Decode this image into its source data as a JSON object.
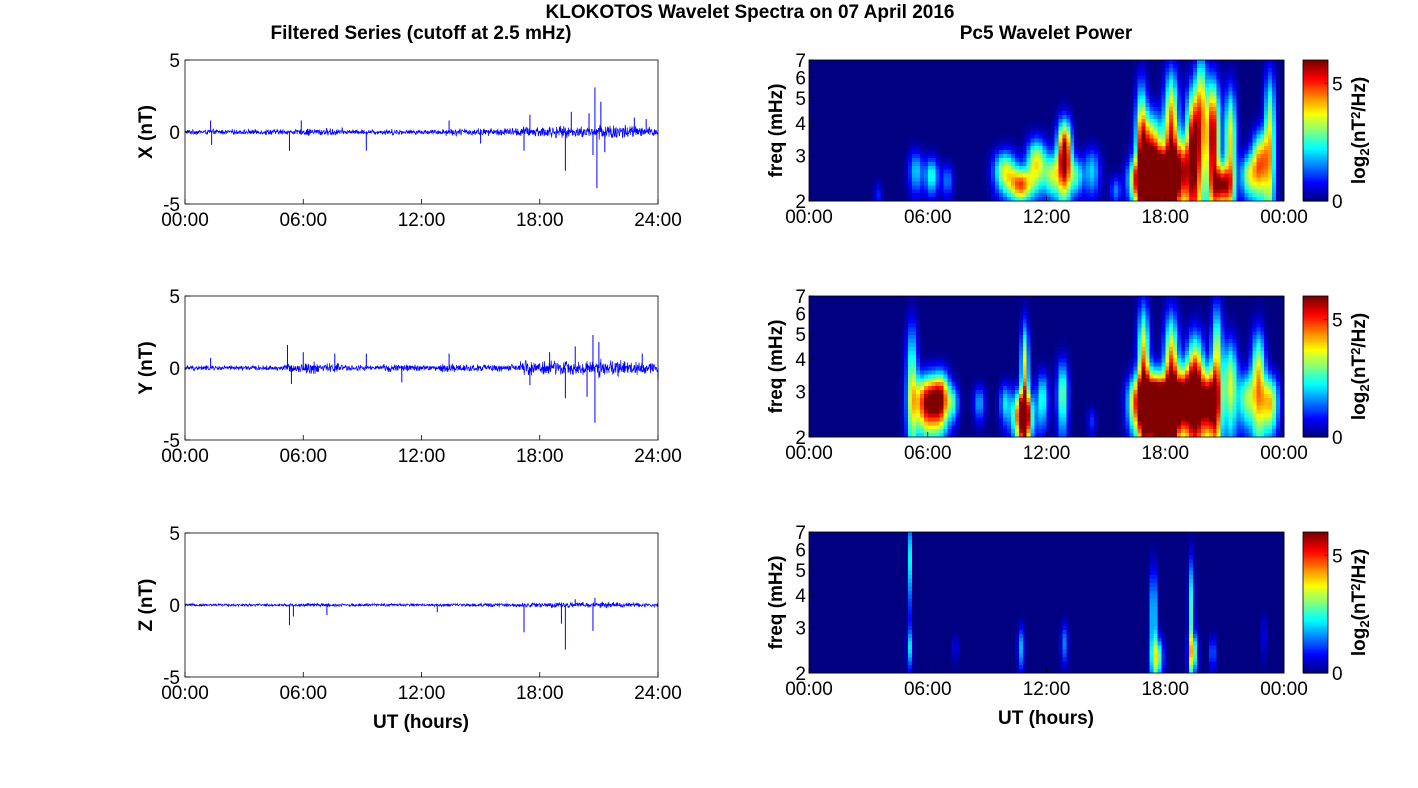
{
  "figure": {
    "title": "KLOKOTOS Wavelet Spectra on 07 April 2016",
    "left_title": "Filtered Series (cutoff at 2.5 mHz)",
    "right_title": "Pc5 Wavelet Power",
    "left_xlabel": "UT (hours)",
    "right_xlabel": "UT (hours)",
    "left_xticks": [
      "00:00",
      "06:00",
      "12:00",
      "18:00",
      "24:00"
    ],
    "right_xticks": [
      "00:00",
      "06:00",
      "12:00",
      "18:00",
      "00:00"
    ]
  },
  "chart_data": [
    {
      "type": "line",
      "ylabel": "X (nT)",
      "ylim": [
        -5,
        5
      ],
      "xlim": [
        "00:00",
        "24:00"
      ],
      "yticks": [
        "5",
        "0",
        "-5"
      ],
      "line_color": "#0000ff",
      "series": [
        {
          "baseline_amplitude_nT": [
            0.2,
            0.2,
            0.2,
            0.2,
            0.25,
            0.2,
            0.3,
            0.3,
            0.2,
            0.2,
            0.25,
            0.2,
            0.2,
            0.3,
            0.3,
            0.3,
            0.35,
            0.45,
            0.5,
            0.45,
            0.45,
            0.7,
            0.6,
            0.4
          ],
          "spikes": [
            [
              1.3,
              0.8
            ],
            [
              1.35,
              -0.9
            ],
            [
              5.3,
              -1.3
            ],
            [
              5.9,
              0.8
            ],
            [
              9.2,
              -1.3
            ],
            [
              13.4,
              0.8
            ],
            [
              15.0,
              -0.8
            ],
            [
              17.2,
              -1.3
            ],
            [
              17.5,
              1.2
            ],
            [
              19.3,
              -2.7
            ],
            [
              19.6,
              1.4
            ],
            [
              20.5,
              1.3
            ],
            [
              20.7,
              -1.6
            ],
            [
              20.8,
              3.1
            ],
            [
              20.9,
              -3.9
            ],
            [
              21.1,
              2.1
            ],
            [
              21.3,
              -1.4
            ],
            [
              22.8,
              1.0
            ],
            [
              23.4,
              0.9
            ]
          ]
        }
      ]
    },
    {
      "type": "line",
      "ylabel": "Y (nT)",
      "ylim": [
        -5,
        5
      ],
      "xlim": [
        "00:00",
        "24:00"
      ],
      "yticks": [
        "5",
        "0",
        "-5"
      ],
      "line_color": "#0000ff",
      "series": [
        {
          "baseline_amplitude_nT": [
            0.2,
            0.2,
            0.2,
            0.2,
            0.2,
            0.35,
            0.5,
            0.4,
            0.25,
            0.2,
            0.3,
            0.3,
            0.25,
            0.35,
            0.3,
            0.3,
            0.3,
            0.6,
            0.65,
            0.55,
            0.6,
            0.8,
            0.6,
            0.5
          ],
          "spikes": [
            [
              1.3,
              0.7
            ],
            [
              5.2,
              1.6
            ],
            [
              5.4,
              -1.1
            ],
            [
              6.0,
              1.1
            ],
            [
              7.6,
              1.0
            ],
            [
              9.2,
              1.0
            ],
            [
              11.0,
              -1.0
            ],
            [
              13.4,
              1.0
            ],
            [
              17.5,
              -1.2
            ],
            [
              18.5,
              1.1
            ],
            [
              19.3,
              -2.1
            ],
            [
              19.8,
              1.5
            ],
            [
              20.4,
              -2.0
            ],
            [
              20.7,
              2.3
            ],
            [
              20.8,
              -3.8
            ],
            [
              21.0,
              1.8
            ],
            [
              23.2,
              1.0
            ],
            [
              24.0,
              -0.8
            ]
          ]
        }
      ]
    },
    {
      "type": "line",
      "ylabel": "Z (nT)",
      "ylim": [
        -5,
        5
      ],
      "xlim": [
        "00:00",
        "24:00"
      ],
      "yticks": [
        "5",
        "0",
        "-5"
      ],
      "line_color": "#0000ff",
      "series": [
        {
          "baseline_amplitude_nT": [
            0.1,
            0.1,
            0.1,
            0.1,
            0.1,
            0.12,
            0.15,
            0.15,
            0.12,
            0.1,
            0.12,
            0.12,
            0.12,
            0.12,
            0.12,
            0.15,
            0.15,
            0.2,
            0.25,
            0.2,
            0.22,
            0.25,
            0.2,
            0.15
          ],
          "spikes": [
            [
              5.3,
              -1.4
            ],
            [
              5.5,
              -0.8
            ],
            [
              7.2,
              -0.7
            ],
            [
              12.8,
              -0.5
            ],
            [
              17.2,
              -1.9
            ],
            [
              19.1,
              -1.3
            ],
            [
              19.3,
              -3.1
            ],
            [
              19.8,
              0.4
            ],
            [
              20.7,
              -1.8
            ],
            [
              20.8,
              0.5
            ]
          ]
        }
      ]
    },
    {
      "type": "heatmap",
      "ylabel": "freq (mHz)",
      "ylim": [
        2,
        7
      ],
      "yscale": "log",
      "xlim": [
        "00:00",
        "00:00"
      ],
      "yticks": [
        "7",
        "6",
        "5",
        "4",
        "3",
        "2"
      ],
      "colorbar_label": "log2(nT^2/Hz)",
      "colorbar_ticks": [
        "5",
        "0"
      ],
      "colorbar_range": [
        0,
        6
      ],
      "colormap": "jet",
      "blobs": [
        [
          3.5,
          2.1,
          0.15,
          0.18,
          0.9
        ],
        [
          5.4,
          2.6,
          0.25,
          0.35,
          2.0
        ],
        [
          6.2,
          2.5,
          0.25,
          0.3,
          2.5
        ],
        [
          7.0,
          2.4,
          0.2,
          0.25,
          1.5
        ],
        [
          9.9,
          2.6,
          0.4,
          0.35,
          3.5
        ],
        [
          10.7,
          2.3,
          0.4,
          0.25,
          4.5
        ],
        [
          11.5,
          2.8,
          0.35,
          0.45,
          3.8
        ],
        [
          12.3,
          2.5,
          0.3,
          0.35,
          3.0
        ],
        [
          12.9,
          3.0,
          0.25,
          0.7,
          6.5
        ],
        [
          13.5,
          2.5,
          0.25,
          0.3,
          2.5
        ],
        [
          14.3,
          2.6,
          0.3,
          0.4,
          2.0
        ],
        [
          16.5,
          2.4,
          0.3,
          0.35,
          3.5
        ],
        [
          16.8,
          3.3,
          0.2,
          1.6,
          4.0
        ],
        [
          17.3,
          2.9,
          0.4,
          0.9,
          5.5
        ],
        [
          17.8,
          2.4,
          0.5,
          0.45,
          6.5
        ],
        [
          18.3,
          3.5,
          0.25,
          1.8,
          5.0
        ],
        [
          18.8,
          2.6,
          0.3,
          0.6,
          4.5
        ],
        [
          19.4,
          3.1,
          0.25,
          1.5,
          6.0
        ],
        [
          19.8,
          4.5,
          0.2,
          2.0,
          3.5
        ],
        [
          20.4,
          3.5,
          0.25,
          1.5,
          6.0
        ],
        [
          20.9,
          2.3,
          0.3,
          0.3,
          5.0
        ],
        [
          21.3,
          3.3,
          0.2,
          1.4,
          4.0
        ],
        [
          22.2,
          2.5,
          0.3,
          0.35,
          3.0
        ],
        [
          22.8,
          2.8,
          0.3,
          0.6,
          4.5
        ],
        [
          23.3,
          3.5,
          0.2,
          1.8,
          3.5
        ],
        [
          15.5,
          2.2,
          0.2,
          0.2,
          1.5
        ]
      ]
    },
    {
      "type": "heatmap",
      "ylabel": "freq (mHz)",
      "ylim": [
        2,
        7
      ],
      "yscale": "log",
      "xlim": [
        "00:00",
        "00:00"
      ],
      "yticks": [
        "7",
        "6",
        "5",
        "4",
        "3",
        "2"
      ],
      "colorbar_label": "log2(nT^2/Hz)",
      "colorbar_ticks": [
        "5",
        "0"
      ],
      "colorbar_range": [
        0,
        6
      ],
      "colormap": "jet",
      "blobs": [
        [
          5.2,
          3.2,
          0.2,
          1.5,
          3.0
        ],
        [
          6.0,
          2.7,
          0.45,
          0.5,
          6.0
        ],
        [
          6.7,
          2.8,
          0.3,
          0.5,
          4.5
        ],
        [
          7.3,
          2.7,
          0.2,
          0.3,
          2.0
        ],
        [
          8.6,
          2.7,
          0.2,
          0.3,
          1.8
        ],
        [
          9.9,
          2.7,
          0.2,
          0.35,
          2.0
        ],
        [
          10.8,
          2.4,
          0.35,
          0.4,
          6.5
        ],
        [
          10.9,
          3.5,
          0.15,
          1.3,
          4.0
        ],
        [
          11.8,
          2.8,
          0.2,
          0.5,
          2.5
        ],
        [
          12.8,
          2.9,
          0.2,
          0.7,
          3.0
        ],
        [
          16.5,
          2.7,
          0.3,
          0.5,
          4.0
        ],
        [
          16.9,
          3.6,
          0.2,
          1.8,
          4.5
        ],
        [
          17.4,
          2.7,
          0.4,
          0.6,
          6.0
        ],
        [
          17.9,
          2.5,
          0.5,
          0.5,
          6.5
        ],
        [
          18.3,
          3.4,
          0.25,
          1.6,
          5.0
        ],
        [
          18.9,
          2.8,
          0.35,
          0.6,
          5.5
        ],
        [
          19.5,
          3.0,
          0.3,
          1.2,
          6.0
        ],
        [
          20.2,
          2.7,
          0.35,
          0.6,
          6.0
        ],
        [
          20.6,
          3.6,
          0.2,
          1.8,
          4.0
        ],
        [
          21.3,
          3.2,
          0.25,
          1.0,
          3.5
        ],
        [
          22.1,
          2.8,
          0.3,
          0.5,
          3.0
        ],
        [
          22.7,
          3.3,
          0.25,
          1.2,
          4.0
        ],
        [
          23.3,
          2.7,
          0.3,
          0.5,
          4.0
        ],
        [
          14.3,
          2.3,
          0.15,
          0.2,
          1.0
        ]
      ]
    },
    {
      "type": "heatmap",
      "ylabel": "freq (mHz)",
      "ylim": [
        2,
        7
      ],
      "yscale": "log",
      "xlim": [
        "00:00",
        "00:00"
      ],
      "yticks": [
        "7",
        "6",
        "5",
        "4",
        "3",
        "2"
      ],
      "colorbar_label": "log2(nT^2/Hz)",
      "colorbar_ticks": [
        "5",
        "0"
      ],
      "colorbar_range": [
        0,
        6
      ],
      "colormap": "jet",
      "blobs": [
        [
          5.1,
          5.5,
          0.06,
          1.5,
          2.2
        ],
        [
          5.1,
          2.5,
          0.1,
          0.3,
          1.8
        ],
        [
          7.4,
          2.5,
          0.1,
          0.2,
          0.8
        ],
        [
          10.7,
          2.5,
          0.12,
          0.35,
          1.8
        ],
        [
          12.9,
          2.6,
          0.12,
          0.35,
          1.5
        ],
        [
          17.4,
          3.3,
          0.12,
          1.2,
          2.5
        ],
        [
          17.6,
          2.3,
          0.2,
          0.3,
          3.0
        ],
        [
          19.3,
          3.5,
          0.1,
          1.4,
          2.5
        ],
        [
          19.4,
          2.4,
          0.15,
          0.3,
          3.0
        ],
        [
          20.4,
          2.4,
          0.1,
          0.25,
          1.8
        ],
        [
          23.0,
          2.8,
          0.1,
          0.4,
          0.8
        ]
      ]
    }
  ]
}
